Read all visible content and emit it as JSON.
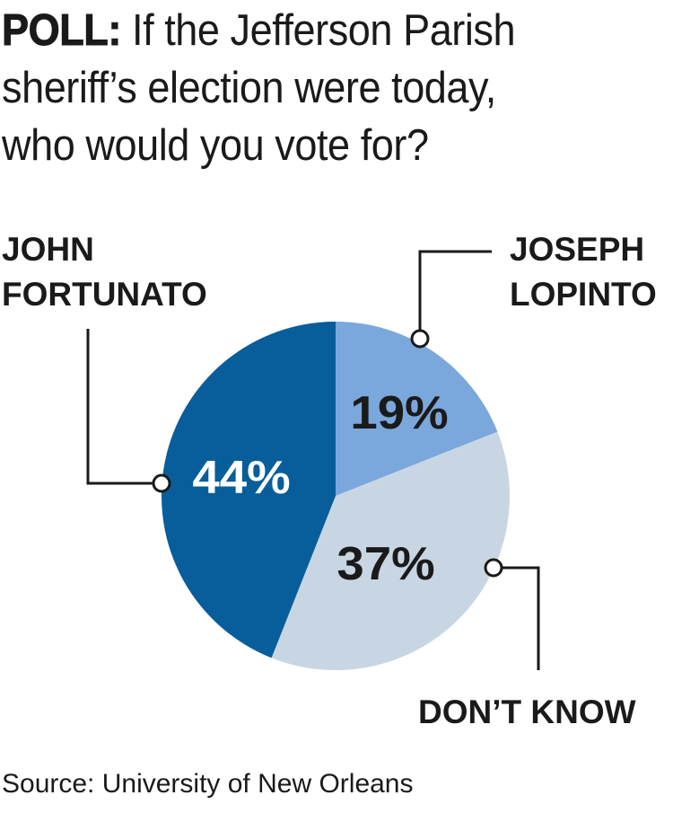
{
  "title": {
    "prefix": "POLL:",
    "line1": "If the Jefferson Parish",
    "line2": "sheriff’s election were today,",
    "line3": "who would you vote for?"
  },
  "chart_data": {
    "type": "pie",
    "slices": [
      {
        "label_line1": "JOSEPH",
        "label_line2": "LOPINTO",
        "value": 19,
        "value_label": "19%",
        "color": "#7aa7dc"
      },
      {
        "label_line1": "DON’T KNOW",
        "label_line2": "",
        "value": 37,
        "value_label": "37%",
        "color": "#c8d6e3"
      },
      {
        "label_line1": "JOHN",
        "label_line2": "FORTUNATO",
        "value": 44,
        "value_label": "44%",
        "color": "#085e9a"
      }
    ],
    "start": "12 o'clock",
    "direction": "clockwise"
  },
  "source": "Source: University of New Orleans"
}
